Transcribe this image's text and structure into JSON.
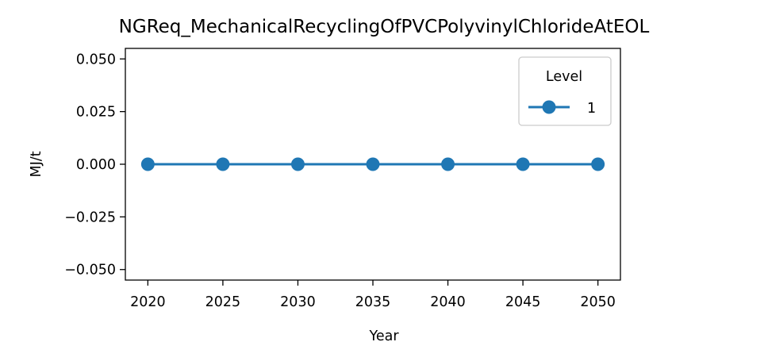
{
  "chart_data": {
    "type": "line",
    "title": "NGReq_MechanicalRecyclingOfPVCPolyvinylChlorideAtEOL",
    "xlabel": "Year",
    "ylabel": "MJ/t",
    "x": [
      2020,
      2025,
      2030,
      2035,
      2040,
      2045,
      2050
    ],
    "x_tick_labels": [
      "2020",
      "2025",
      "2030",
      "2035",
      "2040",
      "2045",
      "2050"
    ],
    "xlim": [
      2018.5,
      2051.5
    ],
    "y_ticks": [
      0.05,
      0.025,
      0,
      -0.025,
      -0.05
    ],
    "y_tick_labels": [
      "0.050",
      "0.025",
      "0.000",
      "−0.025",
      "−0.050"
    ],
    "ylim": [
      -0.055,
      0.055
    ],
    "grid": false,
    "legend": {
      "title": "Level",
      "placement": "top-right"
    },
    "series": [
      {
        "name": "1",
        "color": "#1f77b4",
        "marker": "circle",
        "values": [
          0,
          0,
          0,
          0,
          0,
          0,
          0
        ]
      }
    ]
  }
}
